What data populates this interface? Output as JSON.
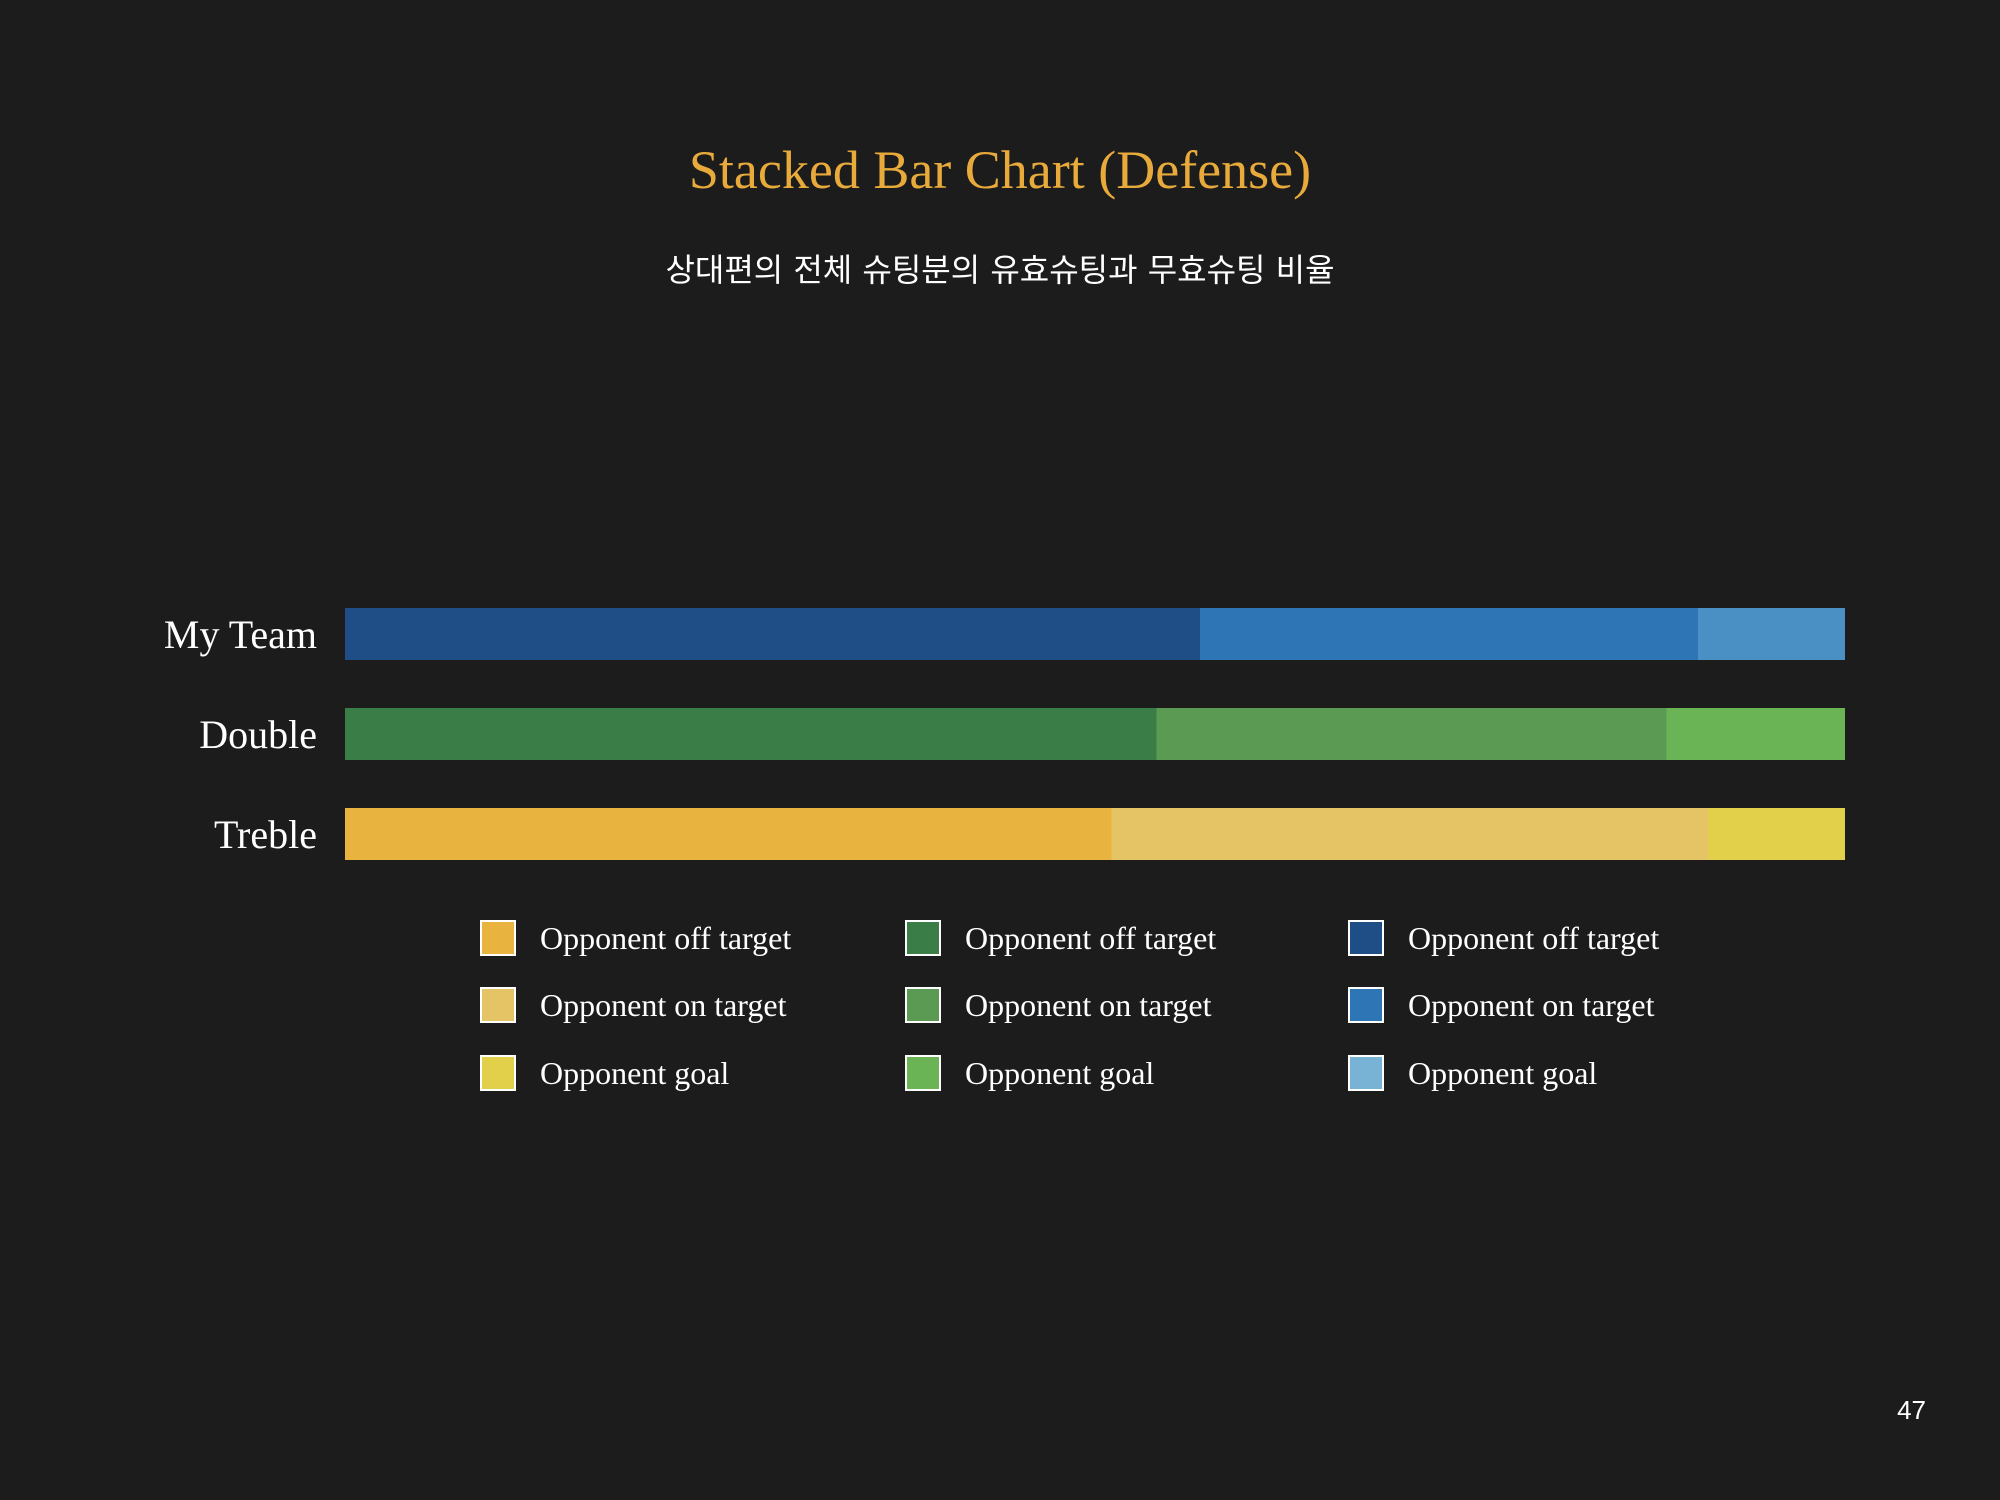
{
  "colors": {
    "background": "#1c1c1c",
    "title": "#e8aa3a",
    "text": "#ffffff"
  },
  "page_number": "47",
  "chart_data": {
    "type": "bar",
    "orientation": "horizontal",
    "stacked": true,
    "percent": true,
    "title": "Stacked Bar Chart (Defense)",
    "subtitle": "상대편의 전체 슈팅분의 유효슈팅과 무효슈팅 비율",
    "xlabel": "",
    "ylabel": "",
    "xlim": [
      0,
      100
    ],
    "grid": false,
    "legend_position": "bottom",
    "categories": [
      "My Team",
      "Double",
      "Treble"
    ],
    "bars": [
      {
        "category": "My Team",
        "segments": [
          {
            "name": "Opponent off target",
            "value": 57,
            "color": "#1f4e87"
          },
          {
            "name": "Opponent on target",
            "value": 33.2,
            "color": "#2e75b6"
          },
          {
            "name": "Opponent goal",
            "value": 9.8,
            "color": "#4a90c4"
          }
        ]
      },
      {
        "category": "Double",
        "segments": [
          {
            "name": "Opponent off target",
            "value": 54.1,
            "color": "#3a7d46"
          },
          {
            "name": "Opponent on target",
            "value": 34,
            "color": "#5a9a52"
          },
          {
            "name": "Opponent goal",
            "value": 11.9,
            "color": "#6ab455"
          }
        ]
      },
      {
        "category": "Treble",
        "segments": [
          {
            "name": "Opponent off target",
            "value": 51.1,
            "color": "#e8b33f"
          },
          {
            "name": "Opponent on target",
            "value": 39.8,
            "color": "#e5c466"
          },
          {
            "name": "Opponent goal",
            "value": 9.1,
            "color": "#e3d04a"
          }
        ]
      }
    ],
    "legend": [
      [
        {
          "label": "Opponent off target",
          "color": "#e8b33f"
        },
        {
          "label": "Opponent on target",
          "color": "#e5c466"
        },
        {
          "label": "Opponent goal",
          "color": "#e3d04a"
        }
      ],
      [
        {
          "label": "Opponent off target",
          "color": "#3a7d46"
        },
        {
          "label": "Opponent on target",
          "color": "#5a9a52"
        },
        {
          "label": "Opponent goal",
          "color": "#6ab455"
        }
      ],
      [
        {
          "label": "Opponent off target",
          "color": "#1f4e87"
        },
        {
          "label": "Opponent on target",
          "color": "#2e75b6"
        },
        {
          "label": "Opponent goal",
          "color": "#78b3d6"
        }
      ]
    ]
  }
}
